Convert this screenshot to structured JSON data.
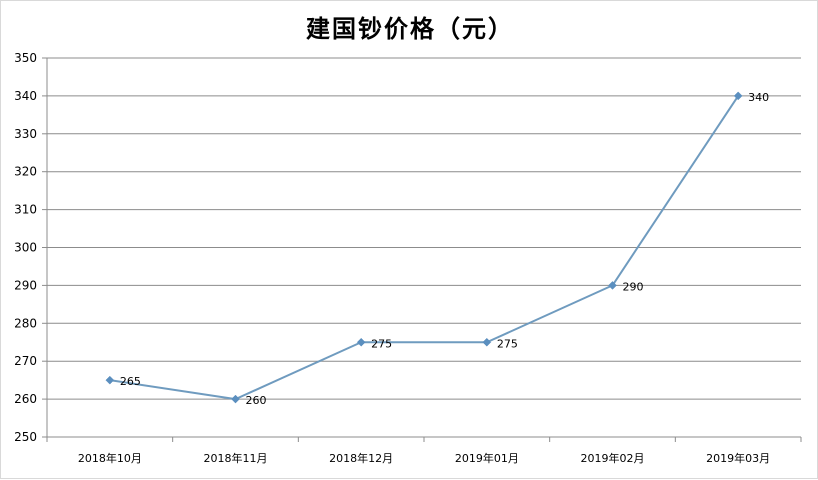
{
  "chart_data": {
    "type": "line",
    "title": "建国钞价格（元）",
    "xlabel": "",
    "ylabel": "",
    "categories": [
      "2018年10月",
      "2018年11月",
      "2018年12月",
      "2019年01月",
      "2019年02月",
      "2019年03月"
    ],
    "series": [
      {
        "values": [
          265,
          260,
          275,
          275,
          290,
          340
        ]
      }
    ],
    "data_labels": [
      "265",
      "260",
      "275",
      "275",
      "290",
      "340"
    ],
    "ylim": [
      250,
      350
    ],
    "yticks": [
      250,
      260,
      270,
      280,
      290,
      300,
      310,
      320,
      330,
      340,
      350
    ],
    "grid": true,
    "legend": "none",
    "colors": {
      "line": "#6f9bbf",
      "marker": "#5b8fbf",
      "grid": "#8c8c8c",
      "axis": "#8c8c8c"
    }
  }
}
